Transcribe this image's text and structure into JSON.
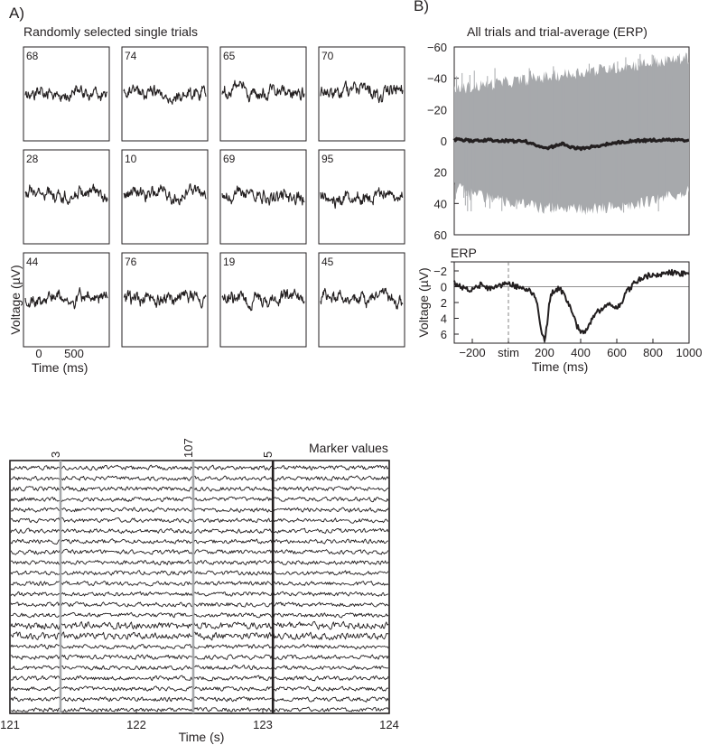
{
  "panel_a": {
    "letter": "A)",
    "title": "Randomly selected single trials",
    "ylabel": "Voltage (µV)",
    "xlabel": "Time (ms)",
    "xticks": [
      "0",
      "500"
    ]
  },
  "panel_b": {
    "letter": "B)",
    "title": "All trials and trial-average (ERP)",
    "erp_label": "ERP",
    "ylabel": "Voltage (µV)",
    "xlabel": "Time (ms)",
    "top_yticks": [
      "−60",
      "−40",
      "−20",
      "0",
      "20",
      "40",
      "60"
    ],
    "bottom_yticks": [
      "−2",
      "0",
      "2",
      "4",
      "6"
    ],
    "xticks": [
      "−200",
      "stim",
      "200",
      "400",
      "600",
      "800",
      "1000"
    ]
  },
  "panel_c": {
    "marker_title": "Marker values",
    "xlabel": "Time (s)",
    "xticks": [
      "121",
      "122",
      "123",
      "124"
    ]
  },
  "colors": {
    "trace": "#231f20",
    "all_trials": "#a7a9ac",
    "marker_gray": "#a7a9ac",
    "marker_black": "#231f20"
  },
  "chart_data": [
    {
      "type": "line",
      "title": "Randomly selected single trials",
      "xlabel": "Time (ms)",
      "ylabel": "Voltage (µV)",
      "xlim": [
        -200,
        1000
      ],
      "trials": [
        "68",
        "74",
        "65",
        "70",
        "28",
        "10",
        "69",
        "95",
        "44",
        "76",
        "19",
        "45"
      ],
      "grid": false
    },
    {
      "type": "line",
      "title": "All trials and trial-average (ERP)",
      "ylabel": "Voltage (µV)",
      "ylim": [
        60,
        -60
      ],
      "y_inverted": true,
      "xlim": [
        -300,
        1000
      ],
      "series": [
        {
          "kind": "all single trials (gray band)",
          "y_spread": [
            -60,
            50
          ]
        },
        {
          "kind": "trial average",
          "x": [
            -300,
            -200,
            -100,
            0,
            100,
            200,
            300,
            350,
            400,
            500,
            600,
            700,
            800,
            900,
            1000
          ],
          "values": [
            -1,
            0,
            -0.5,
            0,
            0.5,
            5,
            2,
            4,
            5,
            3,
            1,
            0,
            -0.5,
            -0.5,
            -0.5
          ]
        }
      ]
    },
    {
      "type": "line",
      "title": "ERP",
      "xlabel": "Time (ms)",
      "ylabel": "Voltage (µV)",
      "ylim": [
        7,
        -3
      ],
      "y_inverted": true,
      "xlim": [
        -300,
        1000
      ],
      "stim_at": 0,
      "series": [
        {
          "x": [
            -300,
            -250,
            -200,
            -150,
            -100,
            -50,
            0,
            50,
            100,
            120,
            150,
            170,
            185,
            200,
            215,
            230,
            250,
            280,
            300,
            330,
            360,
            380,
            400,
            430,
            460,
            500,
            530,
            560,
            600,
            630,
            660,
            700,
            750,
            800,
            850,
            900,
            950,
            1000
          ],
          "values": [
            -0.5,
            0.2,
            0.5,
            -0.3,
            0.3,
            -0.2,
            -0.4,
            0,
            0.3,
            0.5,
            1.5,
            3.5,
            6.2,
            6.8,
            4.5,
            1.5,
            0.5,
            0.2,
            0.8,
            2.0,
            3.5,
            5.0,
            5.8,
            5.5,
            4.3,
            3.0,
            2.8,
            2.0,
            2.8,
            1.8,
            0.5,
            -0.5,
            -1.2,
            -1.6,
            -1.5,
            -1.8,
            -1.6,
            -1.7
          ]
        }
      ]
    },
    {
      "type": "line",
      "xlabel": "Time (s)",
      "xlim": [
        121,
        124
      ],
      "channels": 24,
      "markers": [
        {
          "label": "3",
          "time": 121.4,
          "color": "gray"
        },
        {
          "label": "107",
          "time": 122.45,
          "color": "gray"
        },
        {
          "label": "5",
          "time": 123.08,
          "color": "black"
        }
      ]
    }
  ]
}
